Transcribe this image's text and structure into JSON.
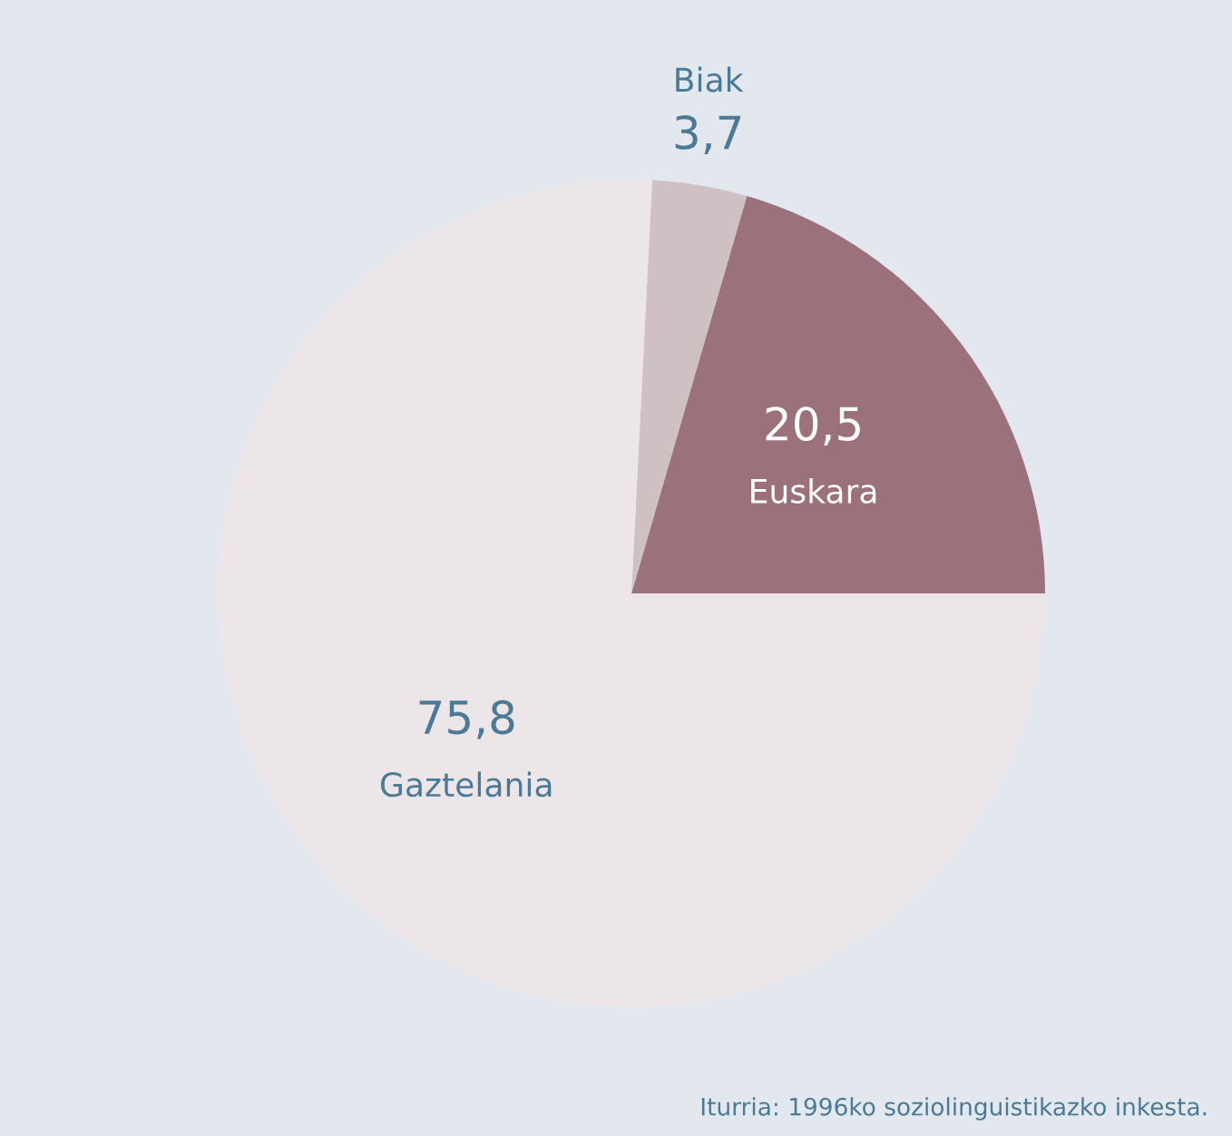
{
  "chart_data": {
    "type": "pie",
    "categories": [
      "Euskara",
      "Biak",
      "Gaztelania"
    ],
    "values": [
      20.5,
      3.7,
      75.8
    ],
    "value_labels": [
      "20,5",
      "3,7",
      "75,8"
    ],
    "colors": [
      "#9b717b",
      "#cfc0c4",
      "#ece6e8"
    ],
    "annotations": [
      "Iturria: 1996ko soziolinguistikazko inkesta."
    ]
  }
}
